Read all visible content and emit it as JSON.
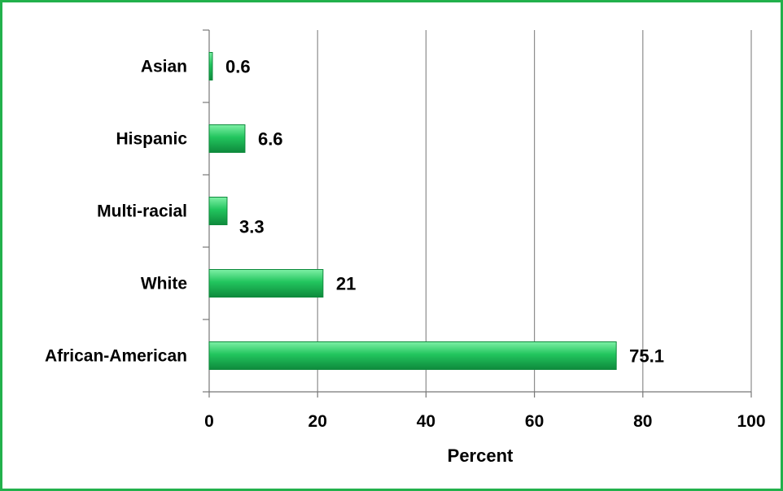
{
  "frame_color": "#22b14c",
  "chart_data": {
    "type": "bar",
    "orientation": "horizontal",
    "categories": [
      "Asian",
      "Hispanic",
      "Multi-racial",
      "White",
      "African-American"
    ],
    "values": [
      0.6,
      6.6,
      3.3,
      21,
      75.1
    ],
    "value_labels": [
      "0.6",
      "6.6",
      "3.3",
      "21",
      "75.1"
    ],
    "xlabel": "Percent",
    "ylabel": "",
    "xlim": [
      0,
      100
    ],
    "x_ticks": [
      "0",
      "20",
      "40",
      "60",
      "80",
      "100"
    ],
    "grid": "vertical",
    "legend": "none",
    "colors": {
      "bar_fill": "#22c55e",
      "bar_light": "#7ef0a6",
      "bar_dark": "#0e8a3c",
      "gridline": "#8c8c8c"
    }
  }
}
